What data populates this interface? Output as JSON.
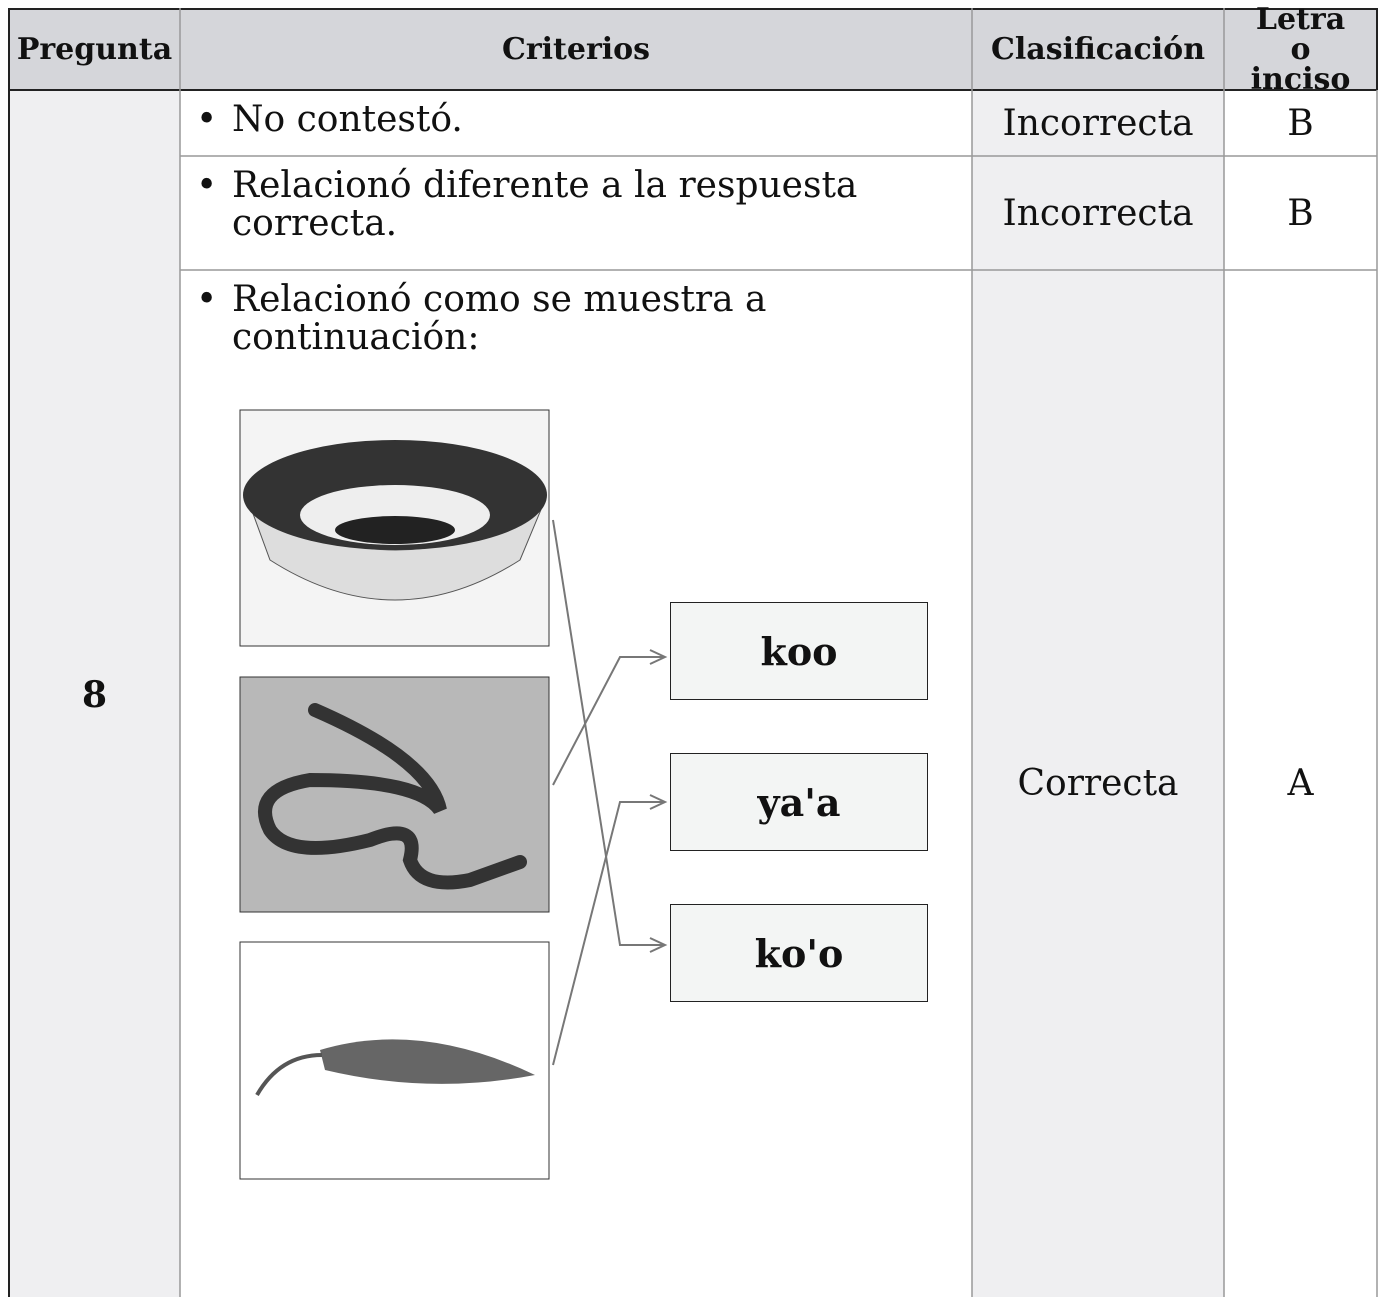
{
  "header": {
    "columns": [
      "Pregunta",
      "Criterios",
      "Clasificación",
      "Letra o inciso"
    ]
  },
  "question": "8",
  "rows": [
    {
      "criterion": "No contestó.",
      "classification": "Incorrecta",
      "letter": "B"
    },
    {
      "criterion": "Relacionó diferente a la respuesta correcta.",
      "classification": "Incorrecta",
      "letter": "B"
    },
    {
      "criterion": "Relacionó como se muestra a continuación:",
      "classification": "Correcta",
      "letter": "A",
      "words": [
        "koo",
        "ya'a",
        "ko'o"
      ]
    }
  ]
}
